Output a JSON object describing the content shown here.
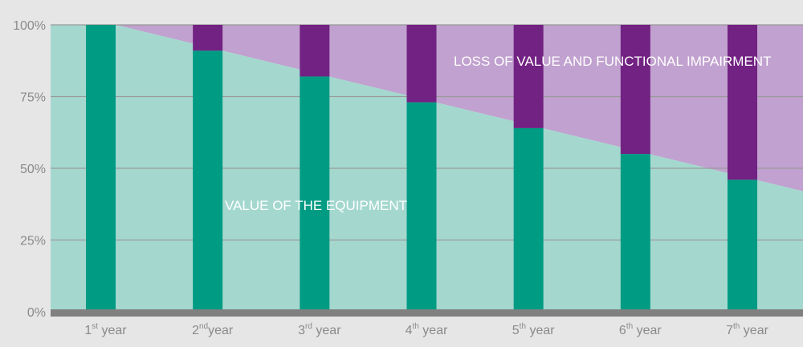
{
  "chart_data": {
    "type": "bar",
    "categories": [
      {
        "num": "1",
        "sup": "st",
        "text": " year"
      },
      {
        "num": "2",
        "sup": "nd",
        "text": "year"
      },
      {
        "num": "3",
        "sup": "rd",
        "text": " year"
      },
      {
        "num": "4",
        "sup": "th",
        "text": " year"
      },
      {
        "num": "5",
        "sup": "th",
        "text": " year"
      },
      {
        "num": "6",
        "sup": "th",
        "text": " year"
      },
      {
        "num": "7",
        "sup": "th",
        "text": " year"
      }
    ],
    "series": [
      {
        "values": [
          100,
          91,
          82,
          73,
          64,
          55,
          46
        ]
      },
      {
        "values": [
          0,
          9,
          18,
          27,
          36,
          45,
          54
        ]
      }
    ],
    "area": {
      "start": 100,
      "end": 42
    },
    "ylim": [
      0,
      100
    ],
    "yticks": [
      {
        "value": 100,
        "label": "100%"
      },
      {
        "value": 75,
        "label": "75%"
      },
      {
        "value": 50,
        "label": "50%"
      },
      {
        "value": 25,
        "label": "25%"
      },
      {
        "value": 0,
        "label": "0%"
      }
    ],
    "annotations": {
      "value_area": "VALUE OF THE EQUIPMENT",
      "loss_area": "LOSS OF VALUE AND FUNCTIONAL IMPAIRMENT"
    },
    "colors": {
      "value_bar": "#009b83",
      "loss_bar": "#722282",
      "value_area": "#a4d8cf",
      "loss_area": "#c1a1cf",
      "grid": "#9a9a9a",
      "baseline": "#808080"
    },
    "grid": true
  }
}
